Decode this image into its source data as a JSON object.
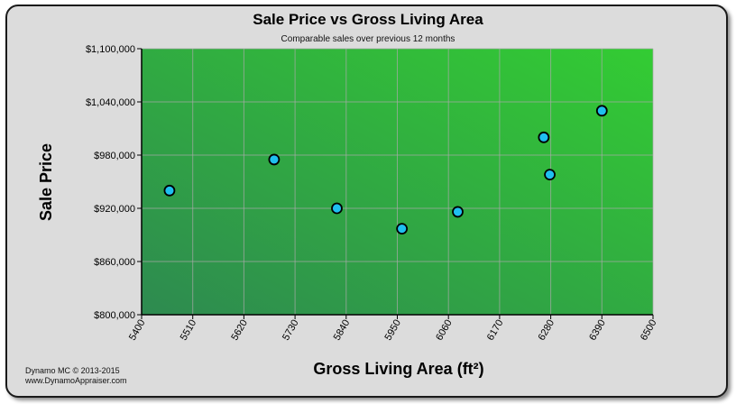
{
  "chart_data": {
    "type": "scatter",
    "title": "Sale Price vs Gross Living Area",
    "subtitle": "Comparable sales over previous 12 months",
    "xlabel": "Gross Living Area (ft²)",
    "ylabel": "Sale Price",
    "xlim": [
      5400,
      6500
    ],
    "ylim": [
      800000,
      1100000
    ],
    "x_ticks": [
      5400,
      5510,
      5620,
      5730,
      5840,
      5950,
      6060,
      6170,
      6280,
      6390,
      6500
    ],
    "y_ticks": [
      800000,
      860000,
      920000,
      980000,
      1040000,
      1100000
    ],
    "y_tick_labels": [
      "$800,000",
      "$860,000",
      "$920,000",
      "$980,000",
      "$1,040,000",
      "$1,100,000"
    ],
    "grid": true,
    "points": [
      {
        "x": 5460,
        "y": 940000
      },
      {
        "x": 5685,
        "y": 975000
      },
      {
        "x": 5820,
        "y": 920000
      },
      {
        "x": 5960,
        "y": 897000
      },
      {
        "x": 6080,
        "y": 916000
      },
      {
        "x": 6265,
        "y": 1000000
      },
      {
        "x": 6278,
        "y": 958000
      },
      {
        "x": 6390,
        "y": 1030000
      }
    ],
    "colors": {
      "marker_fill": "#1fbff0",
      "marker_stroke": "#000000",
      "plot_dark": "#2e8a50",
      "plot_light": "#33cc33",
      "grid": "#aaaaaa"
    }
  },
  "footer": {
    "brand_line1": "Dynamo MC   © 2013-2015",
    "brand_line2": "www.DynamoAppraiser.com"
  }
}
